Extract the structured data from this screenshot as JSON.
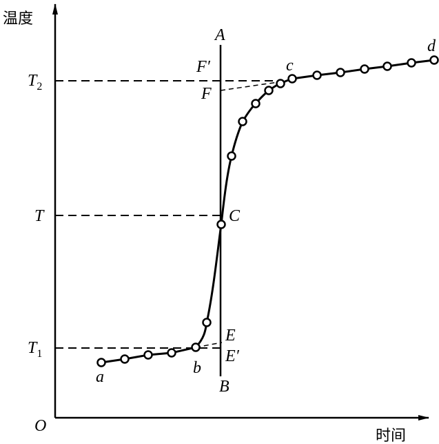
{
  "axes": {
    "y_label": "温度",
    "x_label": "时间",
    "origin": "O"
  },
  "levels": {
    "t2": {
      "main": "T",
      "sub": "2"
    },
    "t": "T",
    "t1": {
      "main": "T",
      "sub": "1"
    }
  },
  "points": {
    "A": "A",
    "B": "B",
    "C": "C",
    "E": "E",
    "E_prime": "E′",
    "F": "F",
    "F_prime": "F′",
    "a": "a",
    "b": "b",
    "c": "c",
    "d": "d"
  }
}
